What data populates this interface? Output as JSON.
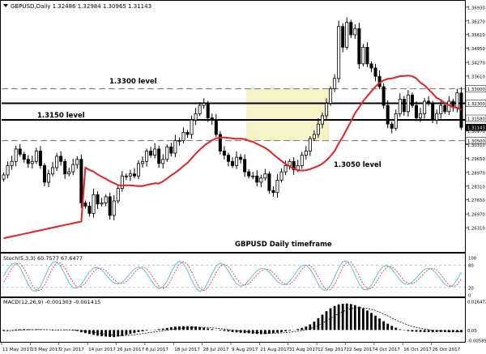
{
  "chart_data": {
    "type": "candlestick",
    "symbol_line": "GBPUSD,Daily  1.32486 1.32984 1.30965 1.31143",
    "main_label": "GBPUSD Daily timeframe",
    "price_axis": {
      "min": 1.2522,
      "max": 1.3712,
      "ticks": [
        "1.36930",
        "1.36270",
        "1.35610",
        "1.34950",
        "1.34270",
        "1.33610",
        "1.33000",
        "1.32300",
        "1.31580",
        "1.31143",
        "1.30970",
        "1.30500",
        "1.30310",
        "1.29650",
        "1.28970",
        "1.28310",
        "1.27650",
        "1.26970",
        "1.26310"
      ]
    },
    "levels": [
      {
        "label": "1.3300 level",
        "price": 1.33,
        "style": "dashed"
      },
      {
        "label": "1.3150 level",
        "price": 1.315,
        "style": "solid"
      },
      {
        "label": "",
        "price": 1.323,
        "style": "solid"
      },
      {
        "label": "1.3050 level",
        "price": 1.305,
        "style": "dashed"
      }
    ],
    "range_box": {
      "from_index": 60,
      "to_index": 79,
      "top": 1.33,
      "bottom": 1.305,
      "color": "#f7f3c8"
    },
    "x_labels": [
      "11 May 2017",
      "23 May 2017",
      "2 Jun 2017",
      "14 Jun 2017",
      "26 Jun 2017",
      "6 Jul 2017",
      "18 Jul 2017",
      "28 Jul 2017",
      "9 Aug 2017",
      "21 Aug 2017",
      "31 Aug 2017",
      "12 Sep 2017",
      "22 Sep 2017",
      "4 Oct 2017",
      "16 Oct 2017",
      "26 Oct 2017"
    ],
    "closes": [
      1.2885,
      1.293,
      1.295,
      1.301,
      1.2985,
      1.296,
      1.294,
      1.295,
      1.3,
      1.293,
      1.285,
      1.289,
      1.292,
      1.2975,
      1.295,
      1.289,
      1.29,
      1.2935,
      1.296,
      1.275,
      1.2735,
      1.27,
      1.279,
      1.2745,
      1.275,
      1.278,
      1.269,
      1.276,
      1.282,
      1.288,
      1.288,
      1.289,
      1.288,
      1.294,
      1.295,
      1.3,
      1.298,
      1.301,
      1.294,
      1.296,
      1.302,
      1.299,
      1.305,
      1.305,
      1.309,
      1.308,
      1.315,
      1.318,
      1.322,
      1.323,
      1.316,
      1.315,
      1.308,
      1.3,
      1.298,
      1.295,
      1.293,
      1.297,
      1.296,
      1.29,
      1.288,
      1.288,
      1.285,
      1.287,
      1.289,
      1.281,
      1.28,
      1.286,
      1.29,
      1.293,
      1.295,
      1.291,
      1.293,
      1.298,
      1.3,
      1.306,
      1.308,
      1.313,
      1.317,
      1.323,
      1.33,
      1.335,
      1.36,
      1.35,
      1.362,
      1.356,
      1.359,
      1.342,
      1.35,
      1.342,
      1.34,
      1.336,
      1.331,
      1.322,
      1.313,
      1.311,
      1.318,
      1.325,
      1.319,
      1.327,
      1.322,
      1.316,
      1.318,
      1.324,
      1.323,
      1.315,
      1.318,
      1.322,
      1.319,
      1.324,
      1.321,
      1.328,
      1.3114
    ],
    "ma_start": 1.258,
    "ma_end": 1.32,
    "stoch": {
      "label": "Stoch(5,3,3) 60.7577 67.6477",
      "levels": [
        80,
        20
      ],
      "ticks": [
        "100",
        "80",
        "20",
        "0"
      ],
      "main_color": "#5bc0d9",
      "signal_color": "#e23b3b"
    },
    "macd": {
      "label": "MACD(12,26,9) -0.001303 -0.001415",
      "ticks": [
        "0.016472",
        "0.00",
        "-0.005891"
      ],
      "max": 0.016472,
      "min": -0.005891,
      "hist": [
        -0.0005,
        -0.0002,
        0.0001,
        0.0003,
        0.0004,
        0.0005,
        0.0004,
        0.0003,
        0.0004,
        0.0003,
        0.0001,
        0.0,
        -0.0002,
        -0.0001,
        0.0,
        0.0002,
        0.0001,
        -0.0003,
        -0.0006,
        -0.0013,
        -0.0018,
        -0.0023,
        -0.0028,
        -0.0033,
        -0.0036,
        -0.0038,
        -0.004,
        -0.0041,
        -0.0038,
        -0.0034,
        -0.0028,
        -0.0022,
        -0.0018,
        -0.0012,
        -0.0008,
        -0.0004,
        -0.0001,
        0.0002,
        0.0005,
        0.0008,
        0.0012,
        0.0016,
        0.0019,
        0.0021,
        0.0022,
        0.0022,
        0.0021,
        0.002,
        0.0017,
        0.0013,
        0.0009,
        0.0005,
        0.0001,
        -0.0003,
        -0.0006,
        -0.0009,
        -0.0012,
        -0.0014,
        -0.0016,
        -0.0018,
        -0.0019,
        -0.0021,
        -0.0023,
        -0.0024,
        -0.0023,
        -0.0021,
        -0.0018,
        -0.0015,
        -0.0012,
        -0.0008,
        -0.0004,
        0.0001,
        0.0006,
        0.0012,
        0.002,
        0.0032,
        0.0048,
        0.0068,
        0.0088,
        0.0108,
        0.0125,
        0.0138,
        0.0147,
        0.0151,
        0.0152,
        0.0149,
        0.0143,
        0.0134,
        0.0124,
        0.0112,
        0.0098,
        0.0082,
        0.0066,
        0.005,
        0.0036,
        0.0024,
        0.0013,
        0.0004,
        -0.0002,
        -0.0006,
        -0.0009,
        -0.001,
        -0.0011,
        -0.0012,
        -0.0012,
        -0.0013,
        -0.0012,
        -0.0011,
        -0.0012,
        -0.0013,
        -0.0012,
        -0.0013,
        -0.0013
      ]
    }
  }
}
